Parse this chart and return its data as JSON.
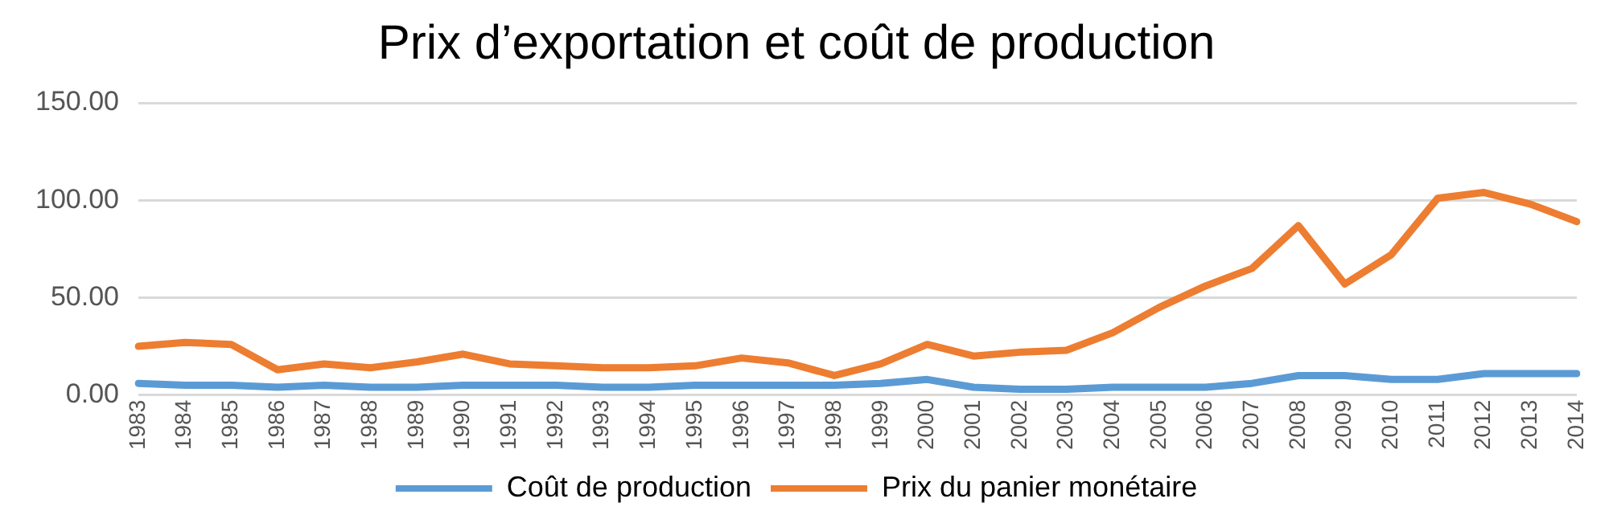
{
  "chart_data": {
    "type": "line",
    "title": "Prix d’exportation et coût de production",
    "categories": [
      "1983",
      "1984",
      "1985",
      "1986",
      "1987",
      "1988",
      "1989",
      "1990",
      "1991",
      "1992",
      "1993",
      "1994",
      "1995",
      "1996",
      "1997",
      "1998",
      "1999",
      "2000",
      "2001",
      "2002",
      "2003",
      "2004",
      "2005",
      "2006",
      "2007",
      "2008",
      "2009",
      "2010",
      "2011",
      "2012",
      "2013",
      "2014"
    ],
    "series": [
      {
        "name": "Coût de production",
        "color": "#5b9bd5",
        "values": [
          6,
          5,
          5,
          4,
          5,
          4,
          4,
          5,
          5,
          5,
          4,
          4,
          5,
          5,
          5,
          5,
          6,
          8,
          4,
          3,
          3,
          4,
          4,
          4,
          6,
          10,
          10,
          8,
          8,
          11,
          11,
          11
        ]
      },
      {
        "name": "Prix du panier monétaire",
        "color": "#ed7d31",
        "values": [
          25,
          27,
          26,
          13,
          16,
          14,
          17,
          21,
          16,
          15,
          14,
          14,
          15,
          19,
          16.5,
          10,
          16,
          26,
          20,
          22,
          23,
          32,
          45,
          56,
          65,
          87,
          57,
          72,
          101,
          104,
          98,
          89
        ]
      }
    ],
    "ylim": [
      0,
      150
    ],
    "yticks": [
      {
        "value": 0,
        "label": "0.00"
      },
      {
        "value": 50,
        "label": "50.00"
      },
      {
        "value": 100,
        "label": "100.00"
      },
      {
        "value": 150,
        "label": "150.00"
      }
    ],
    "grid": "y",
    "legend": "bottom",
    "marker": "none",
    "line_style": "solid"
  }
}
